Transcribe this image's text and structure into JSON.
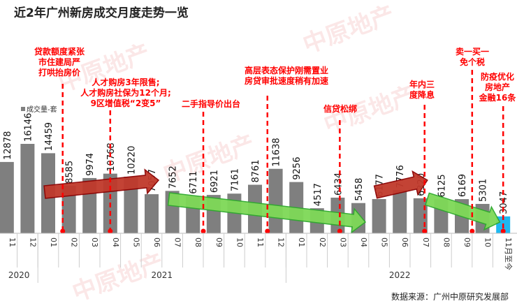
{
  "title": "近2年广州新房成交月度走势一览",
  "source": "数据来源：广州中原研究发展部",
  "watermark": "中原地产 CENTALINE PROPERTY",
  "chart_data": {
    "type": "bar",
    "title": "近2年广州新房成交月度走势一览",
    "legend": "成交量-套",
    "legend_position": "top-left",
    "categories": [
      "11",
      "12",
      "01",
      "02",
      "03",
      "04",
      "05",
      "06",
      "07",
      "08",
      "09",
      "10",
      "11",
      "12",
      "01",
      "02",
      "03",
      "04",
      "05",
      "06",
      "07",
      "08",
      "09",
      "10",
      "11月至今"
    ],
    "years": [
      {
        "label": "2020",
        "count": 2
      },
      {
        "label": "2021",
        "count": 12
      },
      {
        "label": "2022",
        "count": 11
      }
    ],
    "values": [
      12878,
      16146,
      14459,
      8585,
      9974,
      10768,
      10220,
      7057,
      7652,
      6711,
      6921,
      7161,
      8761,
      11638,
      9256,
      4517,
      6434,
      5458,
      6177,
      7776,
      6320,
      6125,
      6169,
      5301,
      3047
    ],
    "ylim": [
      0,
      16146
    ],
    "colors": {
      "bar": "#7f7f7f",
      "current": "#1fb8f0",
      "annotation": "#ff0000",
      "up_arrow": "#c0392b",
      "down_arrow": "#7ed957"
    },
    "annotations": [
      {
        "index": 2.7,
        "lines": [
          "贷款额度紧张",
          "市住建局严",
          "打哄抬房价"
        ]
      },
      {
        "index": 5,
        "lines": [
          "人才购房3年限售;",
          "人才购房社保为12个月;",
          "9区增值税“2变5”"
        ]
      },
      {
        "index": 9.5,
        "lines": [
          "二手指导价出台"
        ]
      },
      {
        "index": 12.6,
        "lines": [
          "高层表态保护刚需置业",
          "房贷审批速度稍有加速"
        ]
      },
      {
        "index": 16.1,
        "lines": [
          "信贷松绑"
        ]
      },
      {
        "index": 20.2,
        "lines": [
          "年内三",
          "度降息"
        ]
      },
      {
        "index": 22.5,
        "lines": [
          "卖一买一",
          "免个税"
        ]
      },
      {
        "index": 24,
        "lines": [
          "防疫优化",
          "房地产",
          "金融16条"
        ]
      }
    ],
    "trend_arrows": [
      {
        "direction": "up",
        "from": 2,
        "to": 7
      },
      {
        "direction": "down",
        "from": 8,
        "to": 17
      },
      {
        "direction": "up",
        "from": 18,
        "to": 20
      },
      {
        "direction": "down",
        "from": 20.5,
        "to": 23.5
      }
    ]
  }
}
